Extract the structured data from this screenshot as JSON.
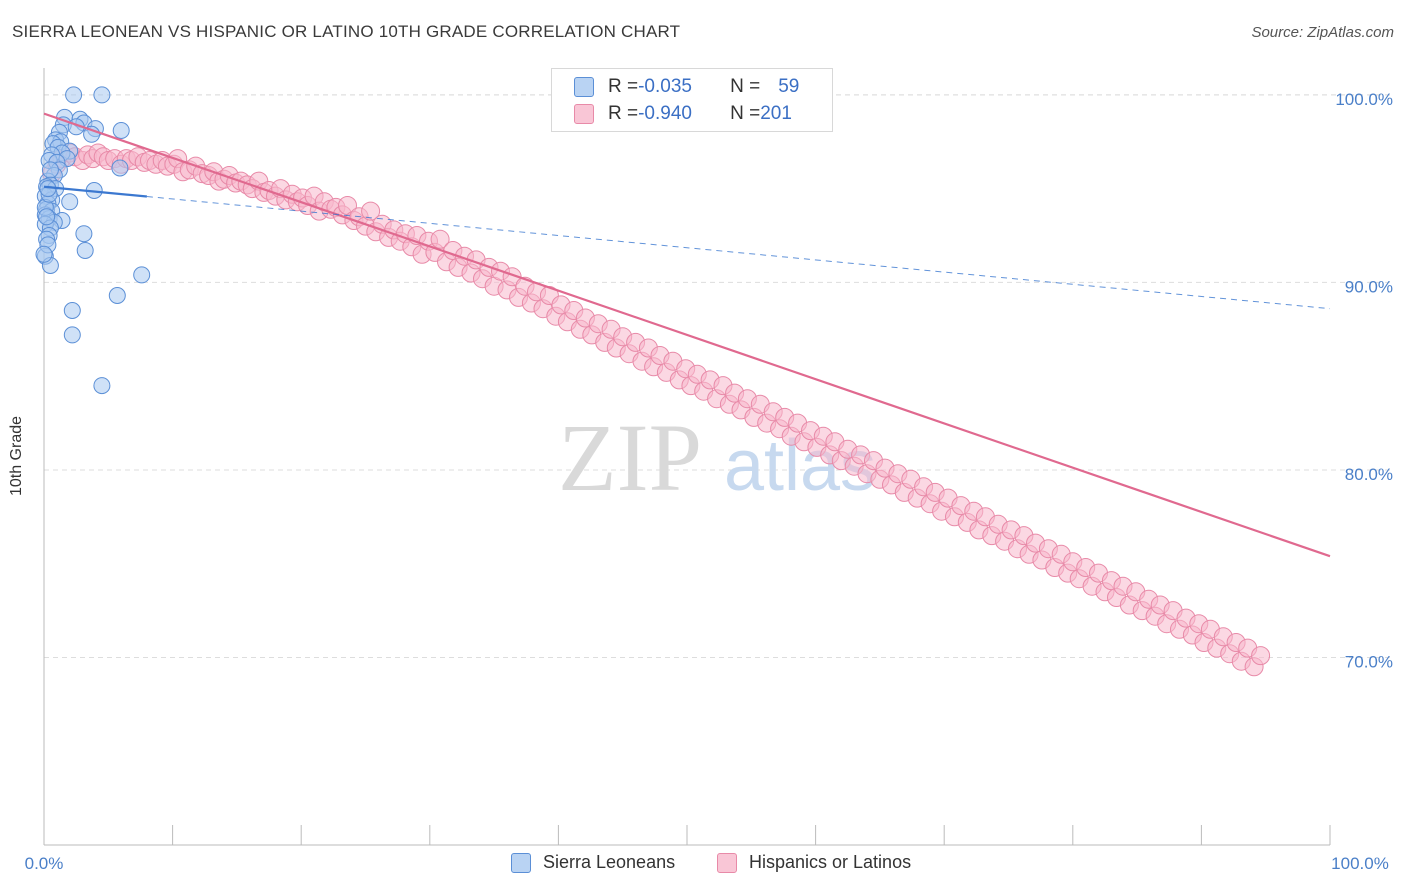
{
  "title": "SIERRA LEONEAN VS HISPANIC OR LATINO 10TH GRADE CORRELATION CHART",
  "source": "Source: ZipAtlas.com",
  "watermark": {
    "zip": "ZIP",
    "atlas": "atlas"
  },
  "colors": {
    "blue_fill": "#a8c8f0",
    "blue_stroke": "#5b8fd6",
    "blue_line": "#3b78d0",
    "pink_fill": "#f7b8cc",
    "pink_stroke": "#e88aa8",
    "pink_line": "#e0698f",
    "tick_text": "#4a7fc8",
    "grid": "#dddddd"
  },
  "legend_top": [
    {
      "r_label": "R = ",
      "r_value": "-0.035",
      "n_label": "N = ",
      "n_value": "59"
    },
    {
      "r_label": "R = ",
      "r_value": "-0.940",
      "n_label": "N = ",
      "n_value": "201"
    }
  ],
  "legend_bottom": [
    "Sierra Leoneans",
    "Hispanics or Latinos"
  ],
  "chart_data": {
    "type": "scatter",
    "title": "SIERRA LEONEAN VS HISPANIC OR LATINO 10TH GRADE CORRELATION CHART",
    "xlabel": "",
    "ylabel": "10th Grade",
    "xlim": [
      0,
      100
    ],
    "ylim": [
      60,
      101
    ],
    "x_tick_labels": [
      "0.0%",
      "100.0%"
    ],
    "y_ticks": [
      70,
      80,
      90,
      100
    ],
    "y_tick_labels": [
      "70.0%",
      "80.0%",
      "90.0%",
      "100.0%"
    ],
    "grid": true,
    "legend_position": "top-center",
    "series": [
      {
        "name": "Sierra Leoneans",
        "r": -0.035,
        "n": 59,
        "trend": {
          "x": [
            0,
            100
          ],
          "y": [
            95.1,
            88.6
          ],
          "solid_until_x": 8
        },
        "points": [
          [
            2.3,
            100
          ],
          [
            4.5,
            100
          ],
          [
            1.6,
            98.8
          ],
          [
            2.8,
            98.7
          ],
          [
            3.1,
            98.5
          ],
          [
            1.5,
            98.4
          ],
          [
            2.5,
            98.3
          ],
          [
            4.0,
            98.2
          ],
          [
            6.0,
            98.1
          ],
          [
            1.2,
            98.0
          ],
          [
            3.7,
            97.9
          ],
          [
            0.9,
            97.6
          ],
          [
            1.3,
            97.5
          ],
          [
            0.7,
            97.4
          ],
          [
            1.1,
            97.2
          ],
          [
            2.0,
            97.0
          ],
          [
            1.4,
            96.9
          ],
          [
            0.6,
            96.8
          ],
          [
            1.8,
            96.6
          ],
          [
            0.4,
            96.5
          ],
          [
            1.0,
            96.4
          ],
          [
            5.9,
            96.1
          ],
          [
            1.2,
            96.0
          ],
          [
            0.8,
            95.7
          ],
          [
            0.3,
            95.4
          ],
          [
            0.5,
            95.2
          ],
          [
            0.2,
            95.1
          ],
          [
            0.9,
            95.0
          ],
          [
            3.9,
            94.9
          ],
          [
            0.1,
            94.6
          ],
          [
            0.6,
            94.4
          ],
          [
            2.0,
            94.3
          ],
          [
            0.3,
            94.2
          ],
          [
            0.2,
            93.9
          ],
          [
            0.6,
            93.8
          ],
          [
            0.1,
            93.6
          ],
          [
            0.4,
            93.4
          ],
          [
            1.4,
            93.3
          ],
          [
            0.8,
            93.2
          ],
          [
            0.1,
            93.1
          ],
          [
            0.5,
            92.9
          ],
          [
            3.1,
            92.6
          ],
          [
            0.4,
            92.5
          ],
          [
            0.2,
            92.3
          ],
          [
            3.2,
            91.7
          ],
          [
            0.1,
            91.4
          ],
          [
            0.5,
            90.9
          ],
          [
            7.6,
            90.4
          ],
          [
            5.7,
            89.3
          ],
          [
            2.2,
            88.5
          ],
          [
            2.2,
            87.2
          ],
          [
            4.5,
            84.5
          ],
          [
            0.1,
            94.0
          ],
          [
            0.2,
            93.5
          ],
          [
            0.3,
            92.0
          ],
          [
            0.0,
            91.5
          ],
          [
            0.4,
            94.7
          ],
          [
            0.3,
            95.0
          ],
          [
            0.5,
            96.0
          ]
        ]
      },
      {
        "name": "Hispanics or Latinos",
        "r": -0.94,
        "n": 201,
        "trend": {
          "x": [
            0,
            100
          ],
          "y": [
            99.0,
            75.4
          ]
        },
        "points": [
          [
            0.6,
            95.8
          ],
          [
            1.0,
            96.3
          ],
          [
            1.4,
            96.6
          ],
          [
            2.0,
            96.9
          ],
          [
            2.4,
            96.7
          ],
          [
            3.0,
            96.5
          ],
          [
            3.4,
            96.8
          ],
          [
            3.8,
            96.6
          ],
          [
            4.2,
            96.9
          ],
          [
            4.6,
            96.7
          ],
          [
            5.0,
            96.5
          ],
          [
            5.5,
            96.6
          ],
          [
            6.0,
            96.3
          ],
          [
            6.4,
            96.6
          ],
          [
            6.8,
            96.5
          ],
          [
            7.3,
            96.7
          ],
          [
            7.8,
            96.4
          ],
          [
            8.2,
            96.5
          ],
          [
            8.7,
            96.3
          ],
          [
            9.2,
            96.5
          ],
          [
            9.6,
            96.2
          ],
          [
            10.1,
            96.3
          ],
          [
            10.4,
            96.6
          ],
          [
            10.8,
            95.9
          ],
          [
            11.3,
            96.0
          ],
          [
            11.8,
            96.2
          ],
          [
            12.3,
            95.8
          ],
          [
            12.8,
            95.7
          ],
          [
            13.2,
            95.9
          ],
          [
            13.6,
            95.4
          ],
          [
            14.0,
            95.5
          ],
          [
            14.4,
            95.7
          ],
          [
            14.9,
            95.3
          ],
          [
            15.3,
            95.4
          ],
          [
            15.8,
            95.2
          ],
          [
            16.2,
            95.0
          ],
          [
            16.7,
            95.4
          ],
          [
            17.1,
            94.8
          ],
          [
            17.5,
            94.9
          ],
          [
            18.0,
            94.6
          ],
          [
            18.4,
            95.0
          ],
          [
            18.8,
            94.4
          ],
          [
            19.3,
            94.7
          ],
          [
            19.7,
            94.3
          ],
          [
            20.1,
            94.5
          ],
          [
            20.5,
            94.1
          ],
          [
            21.0,
            94.6
          ],
          [
            21.4,
            93.8
          ],
          [
            21.8,
            94.3
          ],
          [
            22.3,
            93.9
          ],
          [
            22.7,
            94.0
          ],
          [
            23.2,
            93.6
          ],
          [
            23.6,
            94.1
          ],
          [
            24.1,
            93.3
          ],
          [
            24.5,
            93.5
          ],
          [
            25.0,
            93.0
          ],
          [
            25.4,
            93.8
          ],
          [
            25.8,
            92.7
          ],
          [
            26.3,
            93.1
          ],
          [
            26.8,
            92.4
          ],
          [
            27.2,
            92.8
          ],
          [
            27.7,
            92.2
          ],
          [
            28.1,
            92.6
          ],
          [
            28.6,
            91.9
          ],
          [
            29.0,
            92.5
          ],
          [
            29.4,
            91.5
          ],
          [
            29.9,
            92.2
          ],
          [
            30.4,
            91.6
          ],
          [
            30.8,
            92.3
          ],
          [
            31.3,
            91.1
          ],
          [
            31.8,
            91.7
          ],
          [
            32.2,
            90.8
          ],
          [
            32.7,
            91.4
          ],
          [
            33.2,
            90.5
          ],
          [
            33.6,
            91.2
          ],
          [
            34.1,
            90.2
          ],
          [
            34.6,
            90.8
          ],
          [
            35.0,
            89.8
          ],
          [
            35.5,
            90.6
          ],
          [
            36.0,
            89.6
          ],
          [
            36.4,
            90.3
          ],
          [
            36.9,
            89.2
          ],
          [
            37.4,
            89.8
          ],
          [
            37.9,
            88.9
          ],
          [
            38.3,
            89.5
          ],
          [
            38.8,
            88.6
          ],
          [
            39.3,
            89.3
          ],
          [
            39.8,
            88.2
          ],
          [
            40.2,
            88.8
          ],
          [
            40.7,
            87.9
          ],
          [
            41.2,
            88.5
          ],
          [
            41.7,
            87.5
          ],
          [
            42.1,
            88.1
          ],
          [
            42.6,
            87.2
          ],
          [
            43.1,
            87.8
          ],
          [
            43.6,
            86.8
          ],
          [
            44.1,
            87.5
          ],
          [
            44.5,
            86.5
          ],
          [
            45.0,
            87.1
          ],
          [
            45.5,
            86.2
          ],
          [
            46.0,
            86.8
          ],
          [
            46.5,
            85.8
          ],
          [
            47.0,
            86.5
          ],
          [
            47.4,
            85.5
          ],
          [
            47.9,
            86.1
          ],
          [
            48.4,
            85.2
          ],
          [
            48.9,
            85.8
          ],
          [
            49.4,
            84.8
          ],
          [
            49.9,
            85.4
          ],
          [
            50.3,
            84.5
          ],
          [
            50.8,
            85.1
          ],
          [
            51.3,
            84.2
          ],
          [
            51.8,
            84.8
          ],
          [
            52.3,
            83.8
          ],
          [
            52.8,
            84.5
          ],
          [
            53.3,
            83.5
          ],
          [
            53.7,
            84.1
          ],
          [
            54.2,
            83.2
          ],
          [
            54.7,
            83.8
          ],
          [
            55.2,
            82.8
          ],
          [
            55.7,
            83.5
          ],
          [
            56.2,
            82.5
          ],
          [
            56.7,
            83.1
          ],
          [
            57.2,
            82.2
          ],
          [
            57.6,
            82.8
          ],
          [
            58.1,
            81.8
          ],
          [
            58.6,
            82.5
          ],
          [
            59.1,
            81.5
          ],
          [
            59.6,
            82.1
          ],
          [
            60.1,
            81.2
          ],
          [
            60.6,
            81.8
          ],
          [
            61.1,
            80.8
          ],
          [
            61.5,
            81.5
          ],
          [
            62.0,
            80.5
          ],
          [
            62.5,
            81.1
          ],
          [
            63.0,
            80.2
          ],
          [
            63.5,
            80.8
          ],
          [
            64.0,
            79.8
          ],
          [
            64.5,
            80.5
          ],
          [
            65.0,
            79.5
          ],
          [
            65.4,
            80.1
          ],
          [
            65.9,
            79.2
          ],
          [
            66.4,
            79.8
          ],
          [
            66.9,
            78.8
          ],
          [
            67.4,
            79.5
          ],
          [
            67.9,
            78.5
          ],
          [
            68.4,
            79.1
          ],
          [
            68.9,
            78.2
          ],
          [
            69.3,
            78.8
          ],
          [
            69.8,
            77.8
          ],
          [
            70.3,
            78.5
          ],
          [
            70.8,
            77.5
          ],
          [
            71.3,
            78.1
          ],
          [
            71.8,
            77.2
          ],
          [
            72.3,
            77.8
          ],
          [
            72.7,
            76.8
          ],
          [
            73.2,
            77.5
          ],
          [
            73.7,
            76.5
          ],
          [
            74.2,
            77.1
          ],
          [
            74.7,
            76.2
          ],
          [
            75.2,
            76.8
          ],
          [
            75.7,
            75.8
          ],
          [
            76.2,
            76.5
          ],
          [
            76.6,
            75.5
          ],
          [
            77.1,
            76.1
          ],
          [
            77.6,
            75.2
          ],
          [
            78.1,
            75.8
          ],
          [
            78.6,
            74.8
          ],
          [
            79.1,
            75.5
          ],
          [
            79.6,
            74.5
          ],
          [
            80.0,
            75.1
          ],
          [
            80.5,
            74.2
          ],
          [
            81.0,
            74.8
          ],
          [
            81.5,
            73.8
          ],
          [
            82.0,
            74.5
          ],
          [
            82.5,
            73.5
          ],
          [
            83.0,
            74.1
          ],
          [
            83.4,
            73.2
          ],
          [
            83.9,
            73.8
          ],
          [
            84.4,
            72.8
          ],
          [
            84.9,
            73.5
          ],
          [
            85.4,
            72.5
          ],
          [
            85.9,
            73.1
          ],
          [
            86.4,
            72.2
          ],
          [
            86.8,
            72.8
          ],
          [
            87.3,
            71.8
          ],
          [
            87.8,
            72.5
          ],
          [
            88.3,
            71.5
          ],
          [
            88.8,
            72.1
          ],
          [
            89.3,
            71.2
          ],
          [
            89.8,
            71.8
          ],
          [
            90.2,
            70.8
          ],
          [
            90.7,
            71.5
          ],
          [
            91.2,
            70.5
          ],
          [
            91.7,
            71.1
          ],
          [
            92.2,
            70.2
          ],
          [
            92.7,
            70.8
          ],
          [
            93.1,
            69.8
          ],
          [
            93.6,
            70.5
          ],
          [
            94.1,
            69.5
          ],
          [
            94.6,
            70.1
          ]
        ]
      }
    ]
  }
}
